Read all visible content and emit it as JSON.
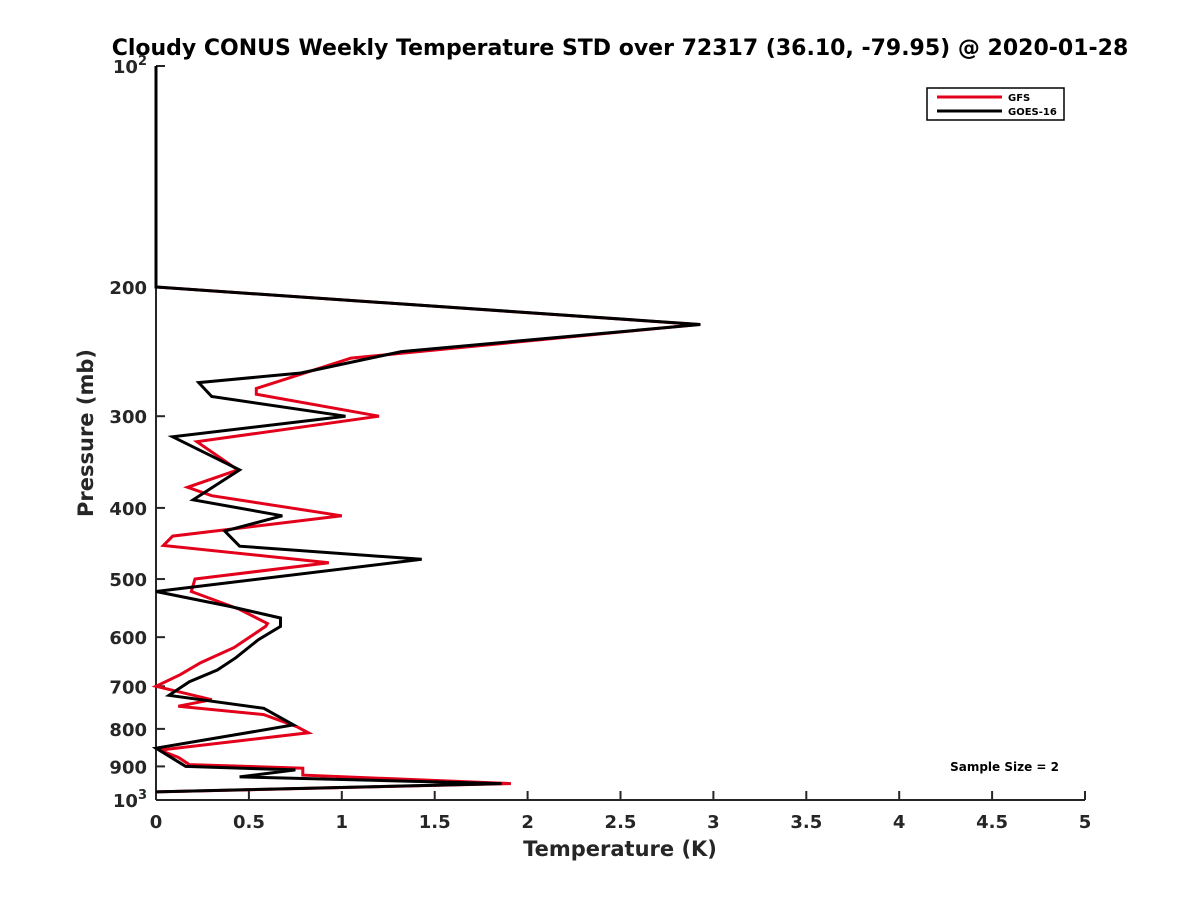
{
  "chart_data": {
    "type": "line",
    "title": "Cloudy CONUS Weekly Temperature STD over 72317 (36.10, -79.95) @ 2020-01-28",
    "xlabel": "Temperature (K)",
    "ylabel": "Pressure (mb)",
    "xlim": [
      0,
      5
    ],
    "ylim": [
      100,
      1000
    ],
    "y_scale": "log",
    "y_reversed": true,
    "grid": false,
    "legend_position": "top-right",
    "x_ticks": [
      "0",
      "0.5",
      "1",
      "1.5",
      "2",
      "2.5",
      "3",
      "3.5",
      "4",
      "4.5",
      "5"
    ],
    "y_ticks": [
      {
        "value": 100,
        "base": "10",
        "exp": "2"
      },
      {
        "value": 200,
        "label": "200"
      },
      {
        "value": 300,
        "label": "300"
      },
      {
        "value": 400,
        "label": "400"
      },
      {
        "value": 500,
        "label": "500"
      },
      {
        "value": 600,
        "label": "600"
      },
      {
        "value": 700,
        "label": "700"
      },
      {
        "value": 800,
        "label": "800"
      },
      {
        "value": 900,
        "label": "900"
      },
      {
        "value": 1000,
        "base": "10",
        "exp": "3"
      }
    ],
    "annotation": "Sample Size = 2",
    "series": [
      {
        "name": "GFS",
        "color": "#e3001b",
        "points": [
          [
            0,
            100
          ],
          [
            0,
            200
          ],
          [
            2.92,
            225
          ],
          [
            1.05,
            250
          ],
          [
            0.54,
            275
          ],
          [
            0.54,
            280
          ],
          [
            1.2,
            300
          ],
          [
            0.22,
            325
          ],
          [
            0.44,
            355
          ],
          [
            0.17,
            375
          ],
          [
            0.3,
            385
          ],
          [
            1.0,
            410
          ],
          [
            0.09,
            437
          ],
          [
            0.04,
            450
          ],
          [
            0.93,
            475
          ],
          [
            0.21,
            500
          ],
          [
            0.19,
            520
          ],
          [
            0.45,
            550
          ],
          [
            0.6,
            575
          ],
          [
            0.59,
            580
          ],
          [
            0.42,
            620
          ],
          [
            0.24,
            650
          ],
          [
            0.13,
            675
          ],
          [
            0.0,
            700
          ],
          [
            0.3,
            730
          ],
          [
            0.12,
            745
          ],
          [
            0.58,
            765
          ],
          [
            0.76,
            795
          ],
          [
            0.82,
            810
          ],
          [
            0.02,
            855
          ],
          [
            0.12,
            875
          ],
          [
            0.18,
            895
          ],
          [
            0.79,
            905
          ],
          [
            0.79,
            925
          ],
          [
            1.91,
            950
          ],
          [
            0.0,
            975
          ]
        ]
      },
      {
        "name": "GOES-16",
        "color": "#000000",
        "points": [
          [
            0,
            100
          ],
          [
            0,
            200
          ],
          [
            2.93,
            225
          ],
          [
            1.32,
            245
          ],
          [
            0.78,
            262
          ],
          [
            0.23,
            270
          ],
          [
            0.3,
            282
          ],
          [
            1.02,
            300
          ],
          [
            0.09,
            320
          ],
          [
            0.45,
            355
          ],
          [
            0.2,
            390
          ],
          [
            0.68,
            410
          ],
          [
            0.37,
            430
          ],
          [
            0.45,
            451
          ],
          [
            1.43,
            470
          ],
          [
            0.0,
            520
          ],
          [
            0.4,
            545
          ],
          [
            0.67,
            565
          ],
          [
            0.67,
            580
          ],
          [
            0.55,
            605
          ],
          [
            0.43,
            640
          ],
          [
            0.33,
            665
          ],
          [
            0.18,
            690
          ],
          [
            0.07,
            720
          ],
          [
            0.58,
            750
          ],
          [
            0.74,
            790
          ],
          [
            0.0,
            850
          ],
          [
            0.16,
            900
          ],
          [
            0.75,
            910
          ],
          [
            0.45,
            930
          ],
          [
            1.86,
            950
          ],
          [
            0.0,
            975
          ]
        ]
      }
    ]
  }
}
